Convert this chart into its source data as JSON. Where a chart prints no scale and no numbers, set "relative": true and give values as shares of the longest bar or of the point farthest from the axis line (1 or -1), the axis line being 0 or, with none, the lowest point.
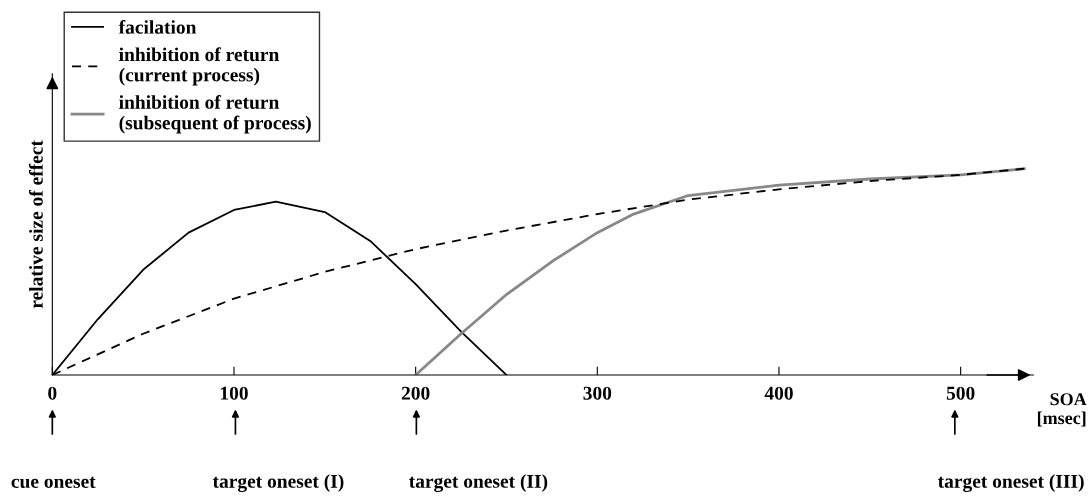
{
  "chart_data": {
    "type": "line",
    "relative": true,
    "xlabel": "SOA\n[msec]",
    "ylabel": "relative size of effect",
    "xlim": [
      0,
      540
    ],
    "xticks": [
      0,
      100,
      200,
      300,
      400,
      500
    ],
    "legend": "top left",
    "grid": false,
    "marker": "none",
    "series": [
      {
        "name": "facilation",
        "color": "#000000",
        "line_style": "solid",
        "x": [
          0,
          25,
          50,
          75,
          100,
          123,
          150,
          175,
          200,
          225,
          250
        ],
        "values": [
          0,
          0.27,
          0.51,
          0.69,
          0.8,
          0.84,
          0.79,
          0.65,
          0.44,
          0.21,
          0
        ]
      },
      {
        "name": "inhibition of return\n(current process)",
        "color": "#000000",
        "line_style": "dashed",
        "x": [
          0,
          50,
          100,
          150,
          200,
          250,
          300,
          350,
          400,
          450,
          500,
          535
        ],
        "values": [
          0,
          0.2,
          0.37,
          0.5,
          0.61,
          0.7,
          0.78,
          0.85,
          0.9,
          0.94,
          0.97,
          1.0
        ]
      },
      {
        "name": "inhibition of return\n(subsequent of process)",
        "color": "#888888",
        "line_style": "solid",
        "x": [
          200,
          225,
          250,
          275,
          300,
          320,
          350,
          400,
          450,
          500,
          535
        ],
        "values": [
          0,
          0.2,
          0.39,
          0.55,
          0.69,
          0.78,
          0.87,
          0.92,
          0.95,
          0.97,
          1.0
        ]
      }
    ],
    "annotations": [
      "cue oneset",
      "target oneset (I)",
      "target oneset (II)",
      "target oneset (III)"
    ]
  }
}
